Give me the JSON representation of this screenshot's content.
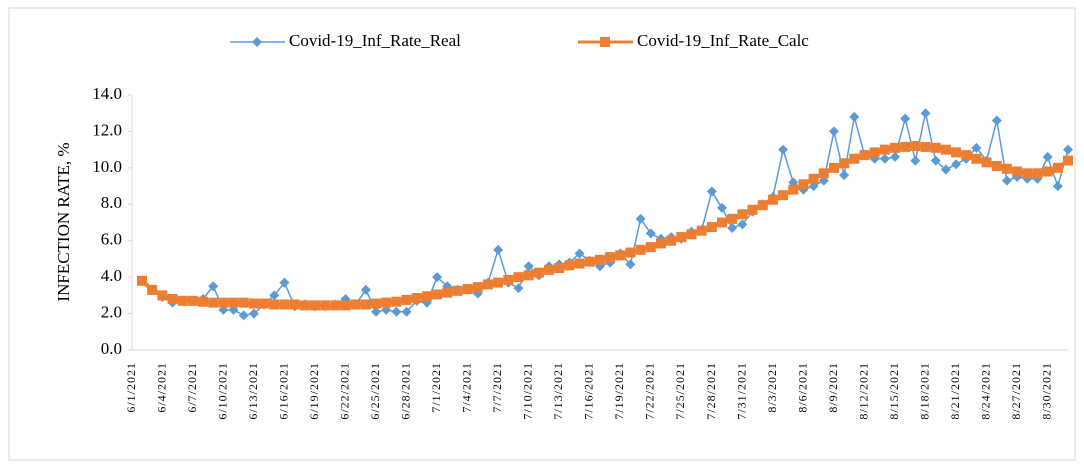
{
  "chart_data": {
    "type": "line",
    "y_label": "INFECTION RATE, %",
    "categories": [
      "6/1/2021",
      null,
      null,
      "6/4/2021",
      null,
      null,
      "6/7/2021",
      null,
      null,
      "6/10/2021",
      null,
      null,
      "6/13/2021",
      null,
      null,
      "6/16/2021",
      null,
      null,
      "6/19/2021",
      null,
      null,
      "6/22/2021",
      null,
      null,
      "6/25/2021",
      null,
      null,
      "6/28/2021",
      null,
      null,
      "7/1/2021",
      null,
      null,
      "7/4/2021",
      null,
      null,
      "7/7/2021",
      null,
      null,
      "7/10/2021",
      null,
      null,
      "7/13/2021",
      null,
      null,
      "7/16/2021",
      null,
      null,
      "7/19/2021",
      null,
      null,
      "7/22/2021",
      null,
      null,
      "7/25/2021",
      null,
      null,
      "7/28/2021",
      null,
      null,
      "7/31/2021",
      null,
      null,
      "8/3/2021",
      null,
      null,
      "8/6/2021",
      null,
      null,
      "8/9/2021",
      null,
      null,
      "8/12/2021",
      null,
      null,
      "8/15/2021",
      null,
      null,
      "8/18/2021",
      null,
      null,
      "8/21/2021",
      null,
      null,
      "8/24/2021",
      null,
      null,
      "8/27/2021",
      null,
      null,
      "8/30/2021",
      null
    ],
    "series": [
      {
        "name": "Covid-19_Inf_Rate_Real",
        "color": "#5B9BD5",
        "marker": "diamond",
        "values": [
          3.8,
          3.3,
          2.9,
          2.6,
          2.7,
          2.7,
          2.8,
          3.5,
          2.2,
          2.2,
          1.9,
          2.0,
          2.5,
          3.0,
          3.7,
          2.4,
          2.5,
          2.4,
          2.4,
          2.5,
          2.8,
          2.5,
          3.3,
          2.1,
          2.2,
          2.1,
          2.1,
          2.7,
          2.6,
          4.0,
          3.5,
          3.3,
          3.3,
          3.1,
          3.7,
          5.5,
          3.7,
          3.4,
          4.6,
          4.1,
          4.6,
          4.7,
          4.8,
          5.3,
          4.9,
          4.6,
          4.8,
          5.3,
          4.7,
          7.2,
          6.4,
          6.1,
          6.2,
          6.1,
          6.5,
          6.6,
          8.7,
          7.8,
          6.7,
          6.9,
          7.6,
          8.0,
          8.4,
          11.0,
          9.2,
          8.8,
          9.0,
          9.3,
          12.0,
          9.6,
          12.8,
          10.7,
          10.5,
          10.5,
          10.6,
          12.7,
          10.4,
          13.0,
          10.4,
          9.9,
          10.2,
          10.5,
          11.1,
          10.4,
          12.6,
          9.3,
          9.5,
          9.4,
          9.4,
          10.6,
          9.0,
          11.0
        ]
      },
      {
        "name": "Covid-19_Inf_Rate_Calc",
        "color": "#ED7D31",
        "marker": "square",
        "values": [
          3.8,
          3.3,
          3.0,
          2.8,
          2.7,
          2.7,
          2.65,
          2.6,
          2.6,
          2.6,
          2.6,
          2.55,
          2.55,
          2.5,
          2.5,
          2.5,
          2.45,
          2.45,
          2.45,
          2.45,
          2.45,
          2.5,
          2.5,
          2.55,
          2.6,
          2.65,
          2.75,
          2.85,
          2.95,
          3.05,
          3.15,
          3.25,
          3.35,
          3.45,
          3.6,
          3.7,
          3.85,
          4.0,
          4.1,
          4.25,
          4.4,
          4.5,
          4.65,
          4.75,
          4.85,
          4.95,
          5.1,
          5.2,
          5.35,
          5.5,
          5.65,
          5.85,
          6.0,
          6.2,
          6.35,
          6.55,
          6.75,
          7.0,
          7.2,
          7.45,
          7.7,
          7.95,
          8.25,
          8.5,
          8.8,
          9.1,
          9.4,
          9.7,
          10.0,
          10.25,
          10.5,
          10.7,
          10.85,
          11.0,
          11.1,
          11.15,
          11.2,
          11.15,
          11.1,
          11.0,
          10.85,
          10.7,
          10.5,
          10.3,
          10.1,
          9.95,
          9.8,
          9.7,
          9.7,
          9.8,
          10.0,
          10.4
        ]
      }
    ],
    "ylim": [
      0,
      14
    ],
    "yticks": [
      {
        "value": 0,
        "label": "0.0"
      },
      {
        "value": 2,
        "label": "2.0"
      },
      {
        "value": 4,
        "label": "4.0"
      },
      {
        "value": 6,
        "label": "6.0"
      },
      {
        "value": 8,
        "label": "8.0"
      },
      {
        "value": 10,
        "label": "10.0"
      },
      {
        "value": 12,
        "label": "12.0"
      },
      {
        "value": 14,
        "label": "14.0"
      }
    ],
    "grid": false,
    "legend": "top"
  }
}
